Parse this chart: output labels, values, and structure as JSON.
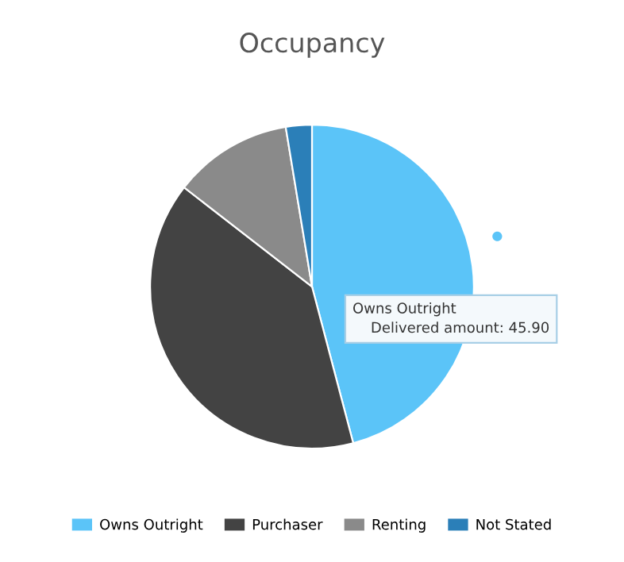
{
  "chart_data": {
    "type": "pie",
    "title": "Occupancy",
    "categories": [
      "Owns Outright",
      "Purchaser",
      "Renting",
      "Not Stated"
    ],
    "values": [
      45.9,
      39.6,
      11.9,
      2.6
    ],
    "colors": [
      "#5bc4f8",
      "#434343",
      "#8a8a8a",
      "#2b7fb8"
    ],
    "legend": "bottom",
    "annotations": [
      "Owns Outright",
      "Delivered amount: 45.90"
    ]
  }
}
